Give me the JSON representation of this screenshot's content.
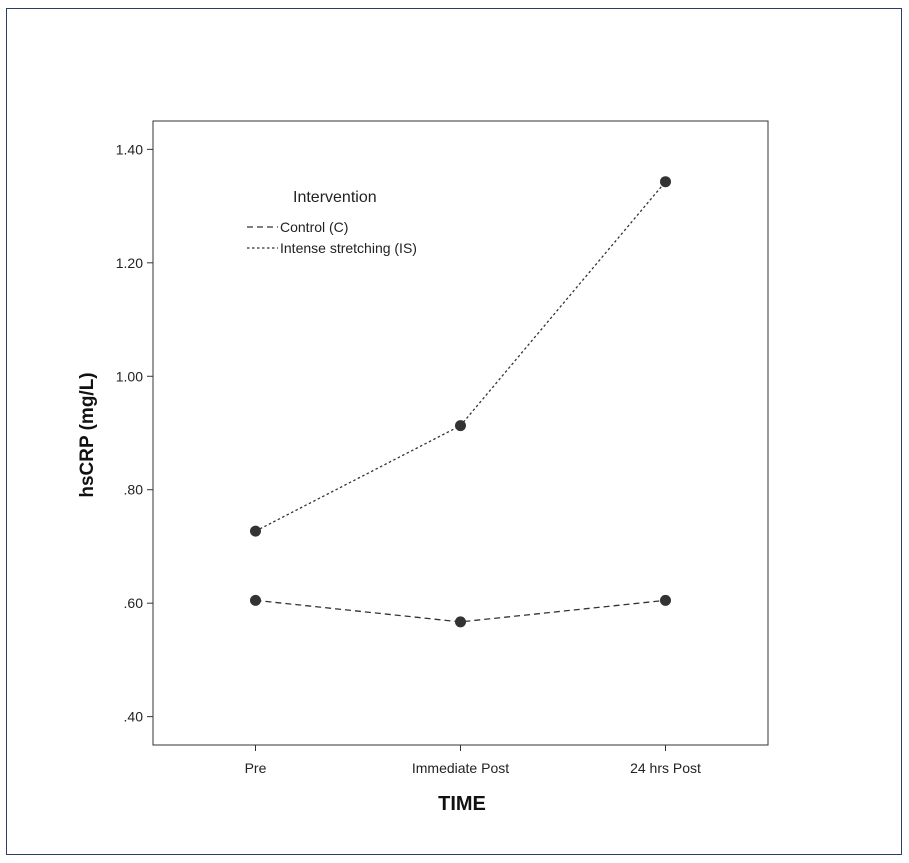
{
  "chart_data": {
    "type": "line",
    "xlabel": "TIME",
    "ylabel": "hsCRP (mg/L)",
    "categories": [
      "Pre",
      "Immediate Post",
      "24 hrs Post"
    ],
    "ylim": [
      0.35,
      1.45
    ],
    "yticks": [
      0.4,
      0.6,
      0.8,
      1.0,
      1.2,
      1.4
    ],
    "ytick_labels": [
      ".40",
      ".60",
      ".80",
      "1.00",
      "1.20",
      "1.40"
    ],
    "legend": {
      "title": "Intervention",
      "placement": "top-left"
    },
    "grid": false,
    "series": [
      {
        "name": "Control (C)",
        "values": [
          0.605,
          0.567,
          0.605
        ],
        "dash": "dashed"
      },
      {
        "name": "Intense stretching (IS)",
        "values": [
          0.727,
          0.913,
          1.343
        ],
        "dash": "dotted"
      }
    ]
  }
}
